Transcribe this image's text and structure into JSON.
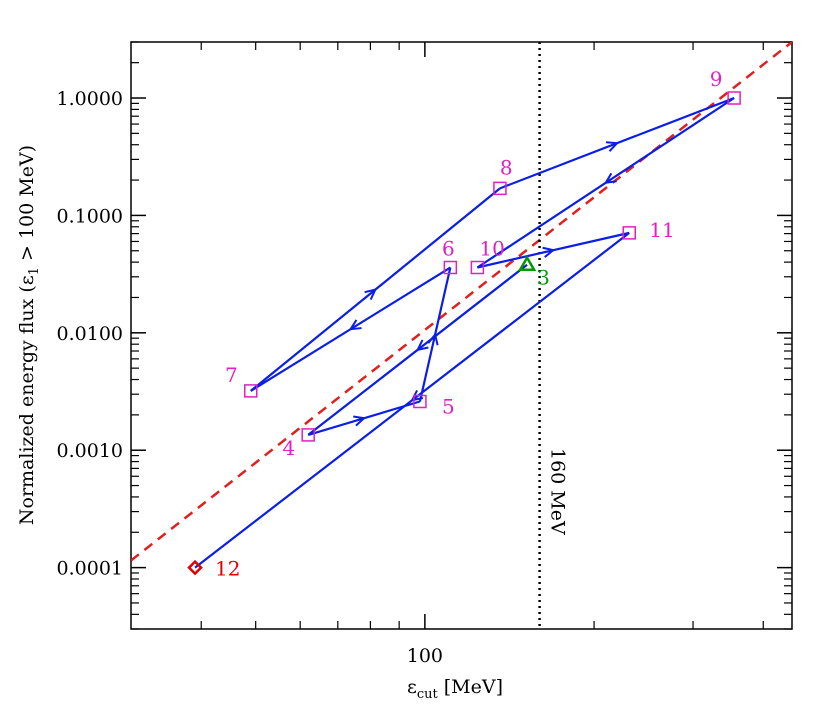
{
  "chart_data": {
    "type": "scatter",
    "title": "",
    "xlabel": "ε_cut [MeV]",
    "xlabel_main": "ε",
    "xlabel_sub": "cut",
    "xlabel_unit": "[MeV]",
    "ylabel": "Normalized energy flux (ε_1 > 100 MeV)",
    "ylabel_pre": "Normalized energy flux (ε",
    "ylabel_sub": "1",
    "ylabel_post": " > 100 MeV)",
    "x_scale": "log",
    "y_scale": "log",
    "xlim": [
      30,
      450
    ],
    "ylim": [
      3e-05,
      3.0
    ],
    "x_ticks": [
      {
        "value": 100,
        "label": "100"
      }
    ],
    "x_minor_ticks": [
      40,
      50,
      60,
      70,
      80,
      90,
      200,
      300,
      400
    ],
    "y_ticks": [
      {
        "value": 0.0001,
        "label": "0.0001"
      },
      {
        "value": 0.001,
        "label": "0.0010"
      },
      {
        "value": 0.01,
        "label": "0.0100"
      },
      {
        "value": 0.1,
        "label": "0.1000"
      },
      {
        "value": 1.0,
        "label": "1.0000"
      }
    ],
    "grid": false,
    "points": [
      {
        "id": "3",
        "x": 152,
        "y": 0.038,
        "marker": "triangle",
        "color": "#009900"
      },
      {
        "id": "4",
        "x": 62,
        "y": 0.00135,
        "marker": "square",
        "color": "#e020c0"
      },
      {
        "id": "5",
        "x": 98,
        "y": 0.0026,
        "marker": "square",
        "color": "#e020c0"
      },
      {
        "id": "6",
        "x": 111,
        "y": 0.036,
        "marker": "square",
        "color": "#e020c0"
      },
      {
        "id": "7",
        "x": 49,
        "y": 0.0032,
        "marker": "square",
        "color": "#e020c0"
      },
      {
        "id": "8",
        "x": 136,
        "y": 0.17,
        "marker": "square",
        "color": "#e020c0"
      },
      {
        "id": "9",
        "x": 355,
        "y": 1.0,
        "marker": "square",
        "color": "#e020c0"
      },
      {
        "id": "10",
        "x": 124,
        "y": 0.036,
        "marker": "square",
        "color": "#e020c0"
      },
      {
        "id": "11",
        "x": 231,
        "y": 0.071,
        "marker": "square",
        "color": "#e020c0"
      },
      {
        "id": "12",
        "x": 39,
        "y": 0.0001,
        "marker": "diamond",
        "color": "#dd0000"
      }
    ],
    "path": [
      "3",
      "4",
      "5",
      "6",
      "7",
      "8",
      "9",
      "10",
      "11",
      "12"
    ],
    "path_color": "#0a1ee6",
    "fit_line": {
      "x": [
        30,
        450
      ],
      "y": [
        0.000115,
        3.0
      ],
      "style": "dashed",
      "color": "#e02020"
    },
    "reference_line": {
      "x": 160,
      "label": "160 MeV",
      "style": "dotted",
      "color": "#000000"
    }
  }
}
